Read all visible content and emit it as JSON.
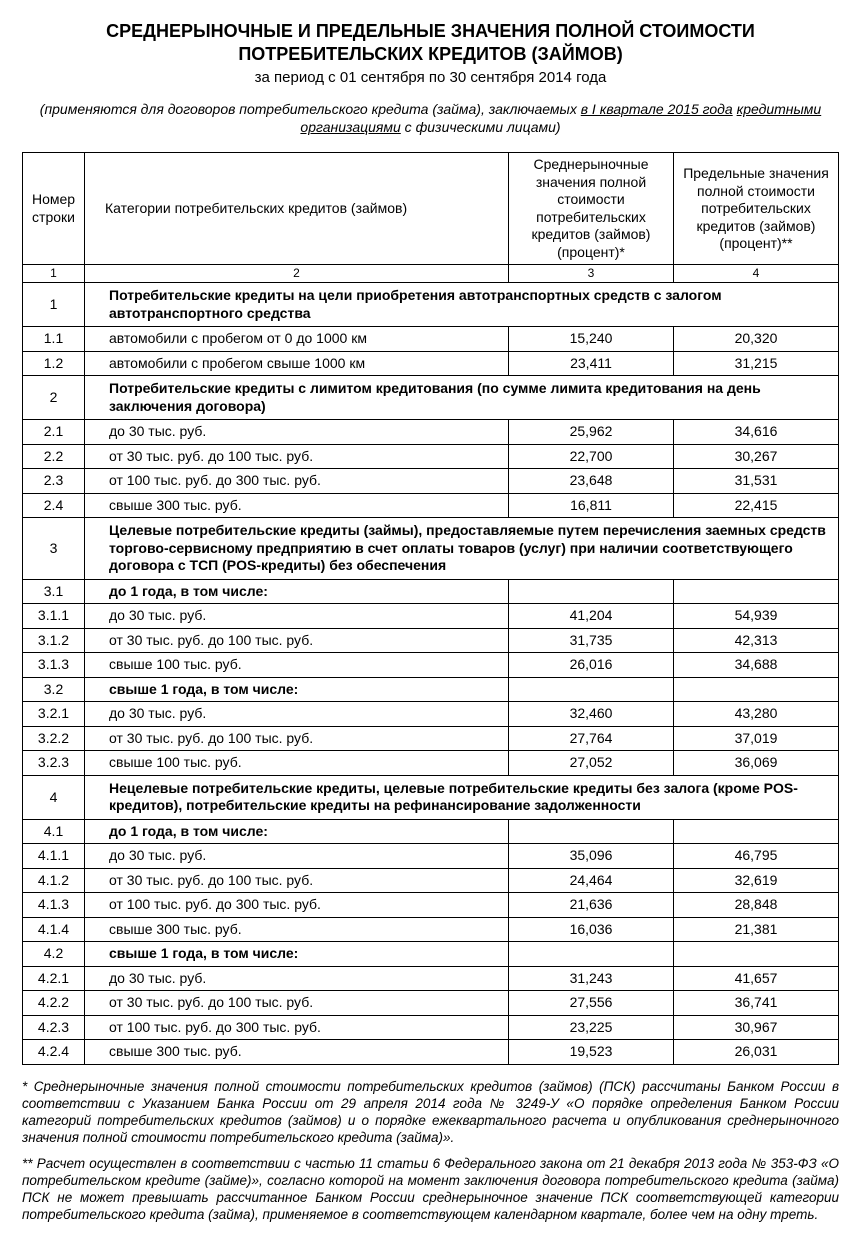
{
  "title_line1": "СРЕДНЕРЫНОЧНЫЕ И ПРЕДЕЛЬНЫЕ ЗНАЧЕНИЯ ПОЛНОЙ СТОИМОСТИ",
  "title_line2": "ПОТРЕБИТЕЛЬСКИХ КРЕДИТОВ (ЗАЙМОВ)",
  "period": "за период с 01 сентября по 30 сентября 2014 года",
  "note_prefix": "(применяются для договоров потребительского кредита (займа), заключаемых ",
  "note_u1": "в I квартале 2015 года",
  "note_mid": " ",
  "note_u2": "кредитными организациями",
  "note_suffix": " с физическими лицами)",
  "columns": {
    "c1": "Номер строки",
    "c2": "Категории потребительских кредитов (займов)",
    "c3": "Среднерыночные значения полной стоимости потребительских кредитов (займов) (процент)*",
    "c4": "Предельные значения полной стоимости потребительских кредитов (займов) (процент)**"
  },
  "col_nums": {
    "c1": "1",
    "c2": "2",
    "c3": "3",
    "c4": "4"
  },
  "rows": [
    {
      "type": "section",
      "num": "1",
      "text": "Потребительские кредиты на цели приобретения автотранспортных средств с залогом автотранспортного средства"
    },
    {
      "type": "data",
      "num": "1.1",
      "cat": "автомобили с пробегом от 0 до 1000 км",
      "v1": "15,240",
      "v2": "20,320"
    },
    {
      "type": "data",
      "num": "1.2",
      "cat": "автомобили с пробегом свыше 1000 км",
      "v1": "23,411",
      "v2": "31,215"
    },
    {
      "type": "section",
      "num": "2",
      "text": "Потребительские кредиты с лимитом кредитования (по сумме лимита кредитования на день заключения договора)"
    },
    {
      "type": "data",
      "num": "2.1",
      "cat": "до 30 тыс. руб.",
      "v1": "25,962",
      "v2": "34,616"
    },
    {
      "type": "data",
      "num": "2.2",
      "cat": "от 30 тыс. руб. до 100 тыс. руб.",
      "v1": "22,700",
      "v2": "30,267"
    },
    {
      "type": "data",
      "num": "2.3",
      "cat": "от 100 тыс. руб. до 300 тыс. руб.",
      "v1": "23,648",
      "v2": "31,531"
    },
    {
      "type": "data",
      "num": "2.4",
      "cat": "свыше 300 тыс. руб.",
      "v1": "16,811",
      "v2": "22,415"
    },
    {
      "type": "section",
      "num": "3",
      "text": "Целевые потребительские кредиты (займы), предоставляемые путем перечисления заемных средств торгово-сервисному предприятию в счет оплаты товаров (услуг) при наличии соответствующего договора с ТСП (POS-кредиты) без обеспечения"
    },
    {
      "type": "sub",
      "num": "3.1",
      "cat": "до 1 года, в том числе:"
    },
    {
      "type": "data",
      "num": "3.1.1",
      "cat": "до 30 тыс. руб.",
      "v1": "41,204",
      "v2": "54,939"
    },
    {
      "type": "data",
      "num": "3.1.2",
      "cat": "от 30 тыс. руб. до 100 тыс. руб.",
      "v1": "31,735",
      "v2": "42,313"
    },
    {
      "type": "data",
      "num": "3.1.3",
      "cat": "свыше 100 тыс. руб.",
      "v1": "26,016",
      "v2": "34,688"
    },
    {
      "type": "sub",
      "num": "3.2",
      "cat": "свыше 1 года, в том числе:"
    },
    {
      "type": "data",
      "num": "3.2.1",
      "cat": "до 30 тыс. руб.",
      "v1": "32,460",
      "v2": "43,280"
    },
    {
      "type": "data",
      "num": "3.2.2",
      "cat": "от 30 тыс. руб. до 100 тыс. руб.",
      "v1": "27,764",
      "v2": "37,019"
    },
    {
      "type": "data",
      "num": "3.2.3",
      "cat": "свыше 100 тыс. руб.",
      "v1": "27,052",
      "v2": "36,069"
    },
    {
      "type": "section",
      "num": "4",
      "text": "Нецелевые потребительские кредиты, целевые потребительские кредиты без залога (кроме POS-кредитов), потребительские кредиты на рефинансирование задолженности"
    },
    {
      "type": "sub",
      "num": "4.1",
      "cat": "до 1 года, в том числе:"
    },
    {
      "type": "data",
      "num": "4.1.1",
      "cat": "до 30 тыс. руб.",
      "v1": "35,096",
      "v2": "46,795"
    },
    {
      "type": "data",
      "num": "4.1.2",
      "cat": "от 30 тыс. руб. до 100 тыс. руб.",
      "v1": "24,464",
      "v2": "32,619"
    },
    {
      "type": "data",
      "num": "4.1.3",
      "cat": "от 100 тыс. руб. до 300 тыс. руб.",
      "v1": "21,636",
      "v2": "28,848"
    },
    {
      "type": "data",
      "num": "4.1.4",
      "cat": "свыше 300 тыс. руб.",
      "v1": "16,036",
      "v2": "21,381"
    },
    {
      "type": "sub",
      "num": "4.2",
      "cat": "свыше 1 года, в том числе:"
    },
    {
      "type": "data",
      "num": "4.2.1",
      "cat": "до 30 тыс. руб.",
      "v1": "31,243",
      "v2": "41,657"
    },
    {
      "type": "data",
      "num": "4.2.2",
      "cat": "от 30 тыс. руб. до 100 тыс. руб.",
      "v1": "27,556",
      "v2": "36,741"
    },
    {
      "type": "data",
      "num": "4.2.3",
      "cat": "от 100 тыс. руб. до 300 тыс. руб.",
      "v1": "23,225",
      "v2": "30,967"
    },
    {
      "type": "data",
      "num": "4.2.4",
      "cat": "свыше 300 тыс. руб.",
      "v1": "19,523",
      "v2": "26,031"
    }
  ],
  "footnote1": "* Среднерыночные значения полной стоимости потребительских кредитов (займов) (ПСК) рассчитаны Банком России в соответствии с Указанием Банка России от 29 апреля 2014 года № 3249-У «О порядке определения Банком России категорий потребительских кредитов (займов) и о порядке ежеквартального расчета и опубликования среднерыночного значения полной стоимости потребительского кредита (займа)».",
  "footnote2": "** Расчет осуществлен в соответствии с частью 11 статьи 6 Федерального закона от 21 декабря 2013 года № 353-ФЗ «О потребительском кредите (займе)», согласно которой на момент заключения договора потребительского кредита (займа) ПСК не может превышать рассчитанное Банком России среднерыночное значение ПСК соответствующей категории потребительского кредита (займа), применяемое в соответствующем календарном квартале, более чем на одну треть."
}
